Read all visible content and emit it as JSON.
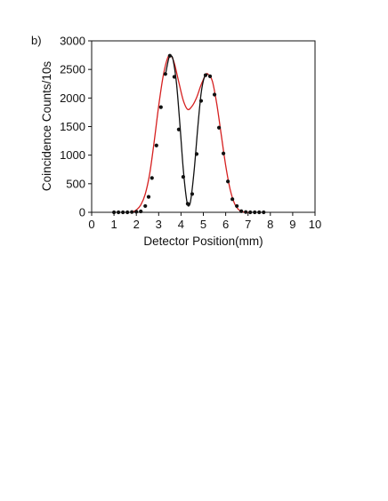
{
  "panel_label": "b)",
  "chart_data": {
    "type": "scatter",
    "title": "",
    "xlabel": "Detector Position(mm)",
    "ylabel": "Coincidence Counts/10s",
    "xlim": [
      0,
      10
    ],
    "ylim": [
      0,
      3000
    ],
    "xticks": [
      "0",
      "1",
      "2",
      "3",
      "4",
      "5",
      "6",
      "7",
      "8",
      "9",
      "10"
    ],
    "yticks": [
      "0",
      "500",
      "1000",
      "1500",
      "2000",
      "2500",
      "3000"
    ],
    "grid": false,
    "legend": "none",
    "colors": {
      "points": "#111111",
      "envelope_fit": "#d62020",
      "interference_fit": "#111111"
    },
    "series": [
      {
        "type": "scatter",
        "x": [
          1.0,
          1.2,
          1.4,
          1.6,
          1.8,
          2.0,
          2.2,
          2.4,
          2.55,
          2.7,
          2.9,
          3.1,
          3.3,
          3.5,
          3.7,
          3.9,
          4.1,
          4.3,
          4.5,
          4.7,
          4.9,
          5.1,
          5.3,
          5.5,
          5.7,
          5.9,
          6.1,
          6.3,
          6.5,
          6.7,
          6.9,
          7.1,
          7.3,
          7.5,
          7.7
        ],
        "y": [
          0,
          0,
          0,
          0,
          5,
          10,
          15,
          110,
          270,
          600,
          1170,
          1840,
          2420,
          2740,
          2370,
          1450,
          620,
          150,
          320,
          1020,
          1950,
          2400,
          2380,
          2060,
          1480,
          1030,
          540,
          230,
          110,
          20,
          5,
          0,
          0,
          0,
          0
        ]
      },
      {
        "type": "line",
        "curve": "envelope_fit",
        "x": [
          1.8,
          2.0,
          2.2,
          2.4,
          2.6,
          2.8,
          3.0,
          3.2,
          3.4,
          3.55,
          3.7,
          3.9,
          4.1,
          4.3,
          4.5,
          4.7,
          4.9,
          5.1,
          5.2,
          5.4,
          5.6,
          5.8,
          6.0,
          6.2,
          6.4,
          6.6,
          6.8,
          7.0
        ],
        "y": [
          0,
          40,
          130,
          320,
          680,
          1240,
          1860,
          2380,
          2700,
          2740,
          2610,
          2280,
          1960,
          1800,
          1860,
          2010,
          2230,
          2400,
          2420,
          2300,
          1900,
          1360,
          820,
          400,
          150,
          40,
          5,
          0
        ]
      },
      {
        "type": "line",
        "curve": "interference_fit",
        "x": [
          3.3,
          3.45,
          3.55,
          3.65,
          3.8,
          3.95,
          4.1,
          4.25,
          4.35,
          4.45,
          4.6,
          4.75,
          4.9,
          5.05,
          5.2
        ],
        "y": [
          2400,
          2690,
          2740,
          2660,
          2250,
          1540,
          760,
          220,
          110,
          250,
          780,
          1480,
          2080,
          2370,
          2420
        ]
      }
    ]
  }
}
